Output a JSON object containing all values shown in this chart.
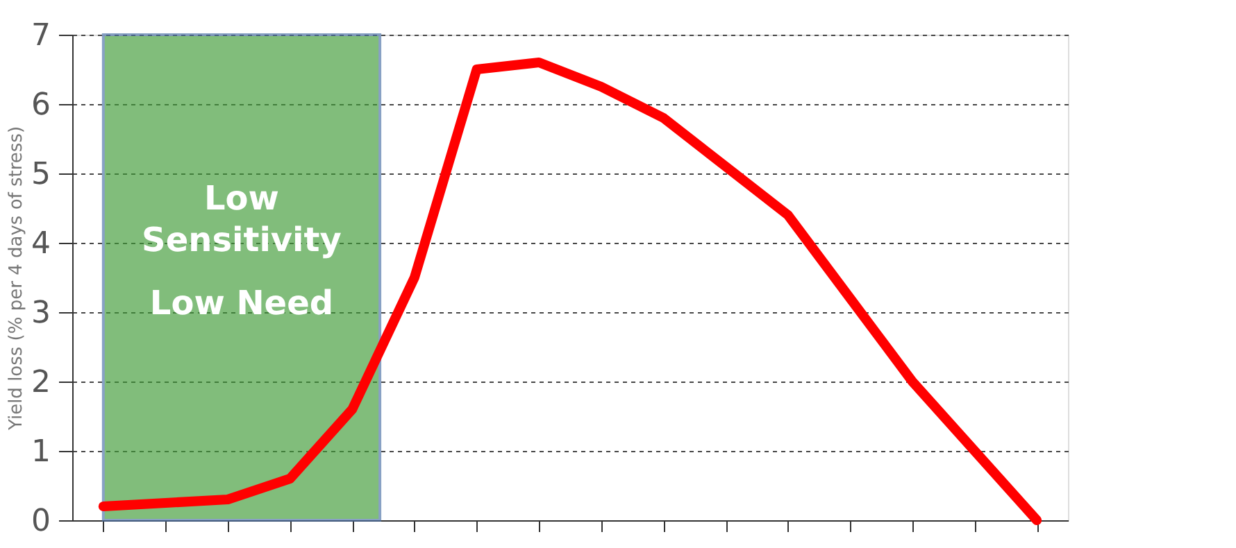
{
  "chart_data": {
    "type": "line",
    "ylabel": "Yield loss (% per 4 days of stress)",
    "categories": [
      null,
      null,
      null,
      null,
      null,
      null,
      null,
      null,
      null,
      null,
      null,
      null,
      null,
      null,
      null,
      null
    ],
    "series": [
      {
        "color": "#ff0000",
        "values": [
          0.2,
          0.25,
          0.3,
          0.6,
          1.6,
          3.5,
          6.5,
          6.6,
          6.25,
          5.8,
          5.1,
          4.4,
          3.2,
          2.0,
          1.0,
          0
        ]
      }
    ],
    "ylim": [
      0,
      7
    ],
    "yticks": [
      0,
      1,
      2,
      3,
      4,
      5,
      6,
      7
    ],
    "tick_labels": "y",
    "grid": "y",
    "line_style": "solid",
    "annotations": [
      "Low Sensitivity",
      "Low Need"
    ]
  }
}
